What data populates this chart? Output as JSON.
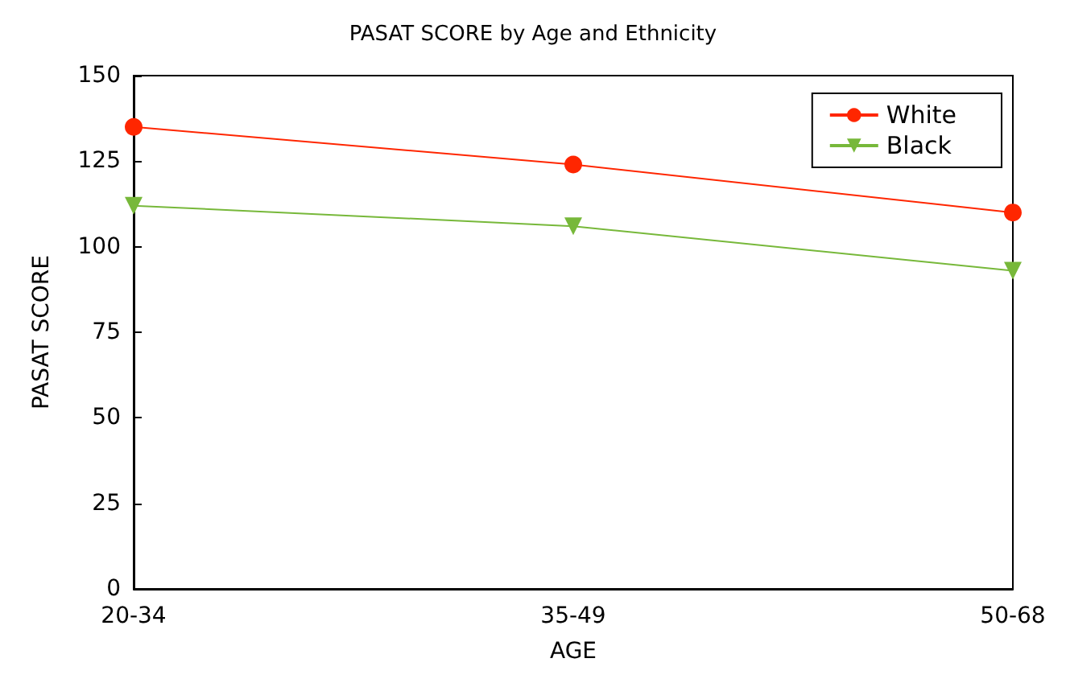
{
  "chart_data": {
    "type": "line",
    "title": "PASAT SCORE by Age and Ethnicity",
    "xlabel": "AGE",
    "ylabel": "PASAT SCORE",
    "categories": [
      "20-34",
      "35-49",
      "50-68"
    ],
    "series": [
      {
        "name": "White",
        "color": "#ff2600",
        "values": [
          135,
          124,
          110
        ],
        "marker": "circle"
      },
      {
        "name": "Black",
        "color": "#77b83a",
        "values": [
          112,
          106,
          93
        ],
        "marker": "triangle"
      }
    ],
    "ylim": [
      0,
      150
    ],
    "yticks": [
      0,
      25,
      50,
      75,
      100,
      125,
      150
    ],
    "grid": false,
    "legend": "top right",
    "line_style": "solid"
  }
}
